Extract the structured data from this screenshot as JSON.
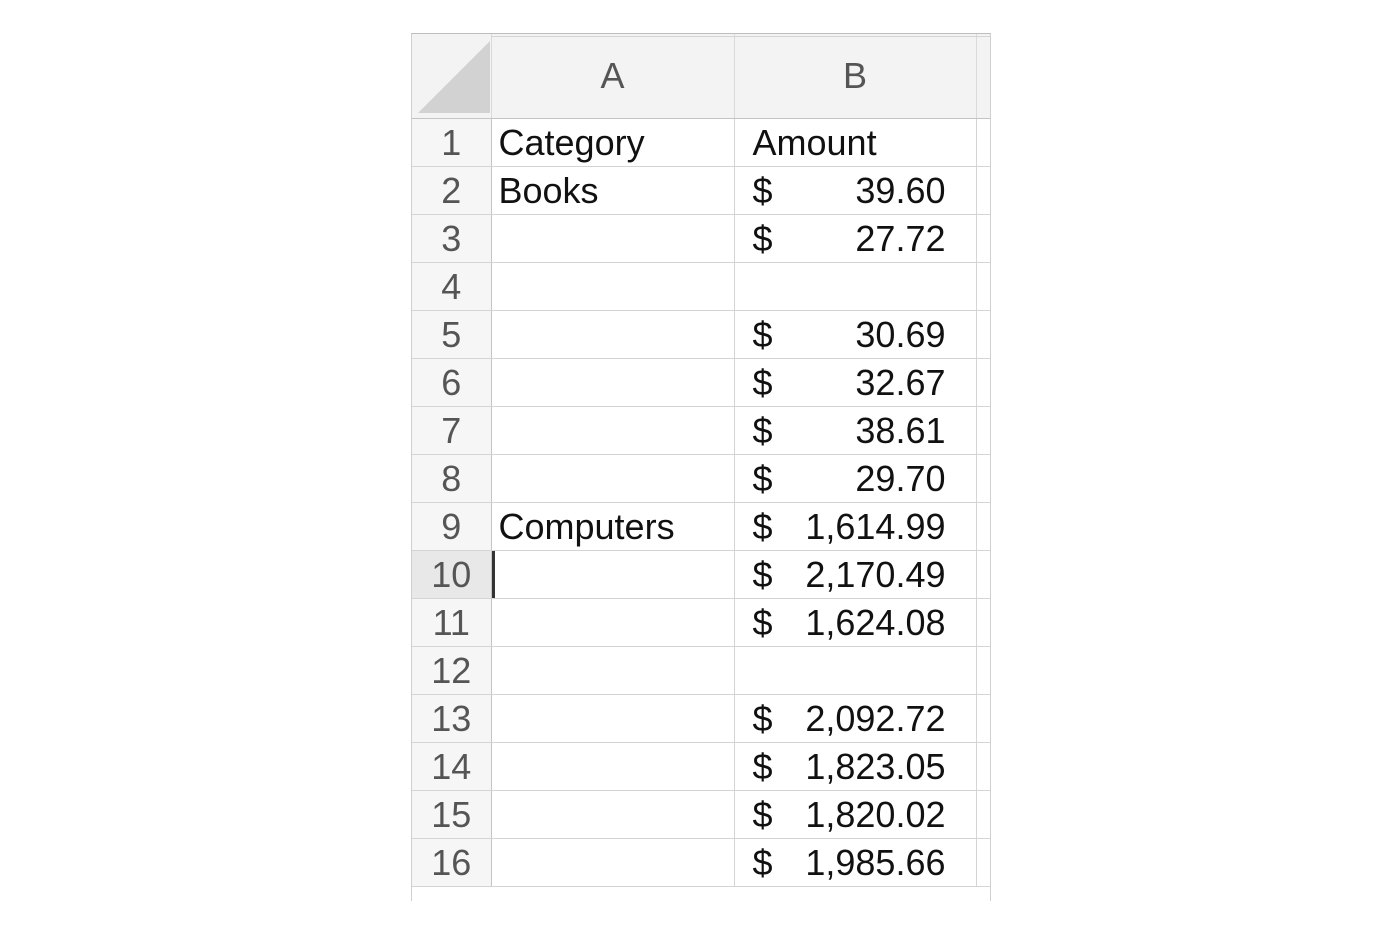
{
  "sheet": {
    "columns": [
      "A",
      "B"
    ],
    "rows": [
      {
        "num": "1",
        "a": "Category",
        "currency": "",
        "amount": "",
        "b_text": "Amount"
      },
      {
        "num": "2",
        "a": "Books",
        "currency": "$",
        "amount": "39.60",
        "b_text": ""
      },
      {
        "num": "3",
        "a": "",
        "currency": "$",
        "amount": "27.72",
        "b_text": ""
      },
      {
        "num": "4",
        "a": "",
        "currency": "",
        "amount": "",
        "b_text": ""
      },
      {
        "num": "5",
        "a": "",
        "currency": "$",
        "amount": "30.69",
        "b_text": ""
      },
      {
        "num": "6",
        "a": "",
        "currency": "$",
        "amount": "32.67",
        "b_text": ""
      },
      {
        "num": "7",
        "a": "",
        "currency": "$",
        "amount": "38.61",
        "b_text": ""
      },
      {
        "num": "8",
        "a": "",
        "currency": "$",
        "amount": "29.70",
        "b_text": ""
      },
      {
        "num": "9",
        "a": "Computers",
        "currency": "$",
        "amount": "1,614.99",
        "b_text": ""
      },
      {
        "num": "10",
        "a": "",
        "currency": "$",
        "amount": "2,170.49",
        "b_text": ""
      },
      {
        "num": "11",
        "a": "",
        "currency": "$",
        "amount": "1,624.08",
        "b_text": ""
      },
      {
        "num": "12",
        "a": "",
        "currency": "",
        "amount": "",
        "b_text": ""
      },
      {
        "num": "13",
        "a": "",
        "currency": "$",
        "amount": "2,092.72",
        "b_text": ""
      },
      {
        "num": "14",
        "a": "",
        "currency": "$",
        "amount": "1,823.05",
        "b_text": ""
      },
      {
        "num": "15",
        "a": "",
        "currency": "$",
        "amount": "1,820.02",
        "b_text": ""
      },
      {
        "num": "16",
        "a": "",
        "currency": "$",
        "amount": "1,985.66",
        "b_text": ""
      }
    ],
    "active_row": "10"
  }
}
